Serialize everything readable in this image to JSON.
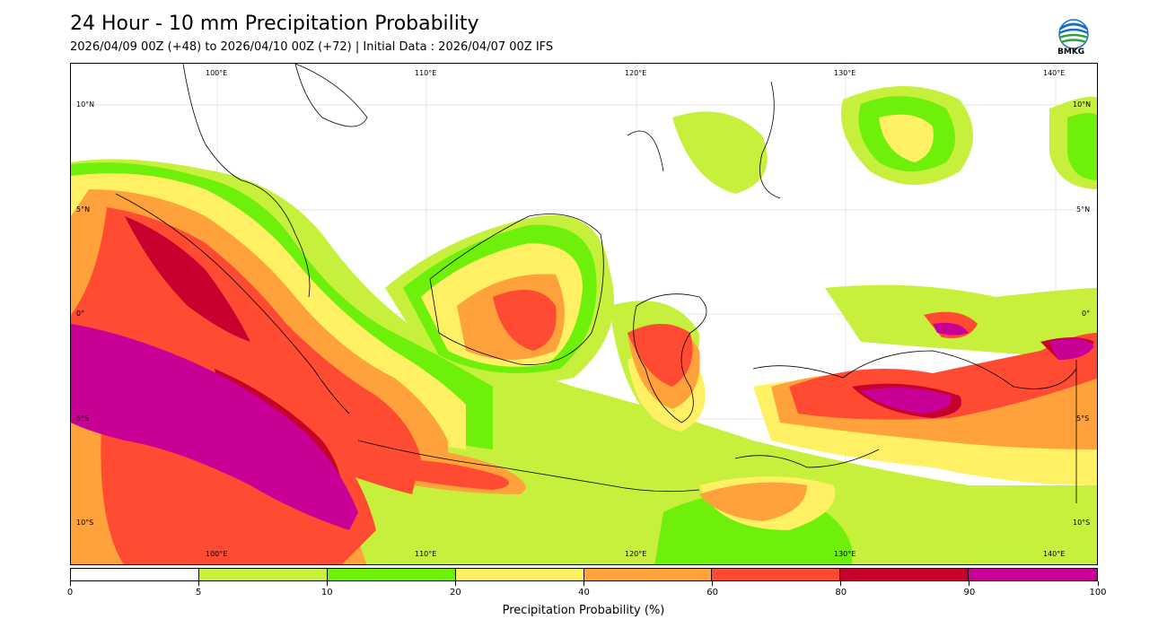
{
  "header": {
    "title": "24 Hour - 10 mm Precipitation Probability",
    "subtitle": "2026/04/09 00Z (+48) to 2026/04/10 00Z (+72) | Initial Data : 2026/04/07 00Z IFS"
  },
  "logo": {
    "text": "BMKG",
    "icon": "bmkg-logo-icon"
  },
  "map": {
    "lon_labels_top": [
      "100°E",
      "110°E",
      "120°E",
      "130°E",
      "140°E"
    ],
    "lon_labels_bottom": [
      "100°E",
      "110°E",
      "120°E",
      "130°E",
      "140°E"
    ],
    "lat_labels_left": [
      "10°N",
      "5°N",
      "0°",
      "5°S",
      "10°S"
    ],
    "lat_labels_right": [
      "10°N",
      "5°N",
      "0°",
      "5°S",
      "10°S"
    ]
  },
  "colorbar": {
    "label": "Precipitation Probability (%)",
    "ticks": [
      "0",
      "5",
      "10",
      "20",
      "40",
      "60",
      "80",
      "90",
      "100"
    ],
    "colors": [
      "#ffffff",
      "#c6f03c",
      "#6ef00a",
      "#fff064",
      "#ffa23c",
      "#ff4b32",
      "#c8002d",
      "#c80096"
    ]
  }
}
